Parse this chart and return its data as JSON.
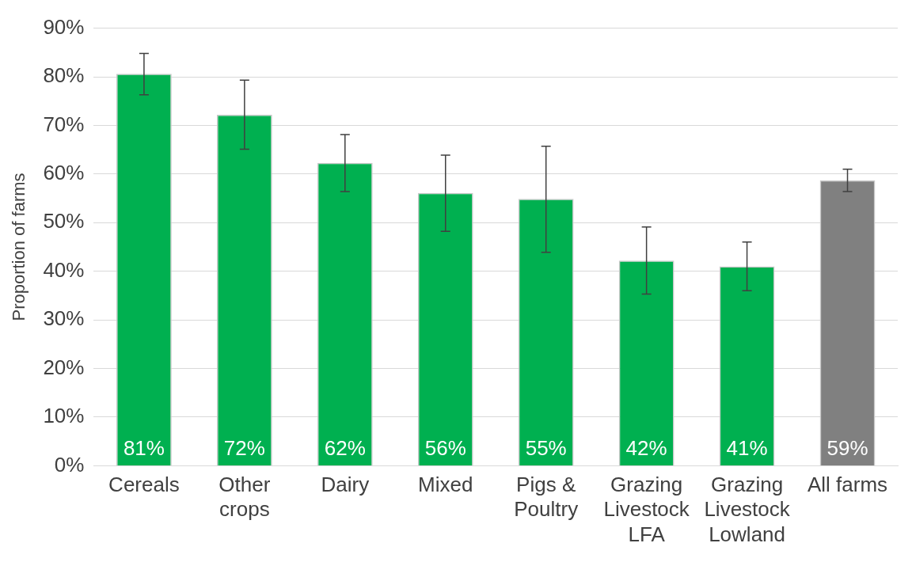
{
  "chart_data": {
    "type": "bar",
    "ylabel": "Proportion of farms",
    "categories": [
      "Cereals",
      "Other crops",
      "Dairy",
      "Mixed",
      "Pigs & Poultry",
      "Grazing Livestock LFA",
      "Grazing Livestock Lowland",
      "All farms"
    ],
    "values": [
      80.6,
      72.2,
      62.3,
      56.1,
      54.9,
      42.2,
      41.0,
      58.7
    ],
    "colors": [
      "#00b050",
      "#00b050",
      "#00b050",
      "#00b050",
      "#00b050",
      "#00b050",
      "#00b050",
      "#808080"
    ],
    "errors": [
      [
        76.3,
        84.8
      ],
      [
        65.1,
        79.3
      ],
      [
        56.4,
        68.1
      ],
      [
        48.2,
        63.9
      ],
      [
        43.9,
        65.7
      ],
      [
        35.3,
        49.1
      ],
      [
        36.0,
        46.0
      ],
      [
        56.4,
        61.0
      ]
    ],
    "value_labels": [
      "81%",
      "72%",
      "62%",
      "56%",
      "55%",
      "42%",
      "41%",
      "59%"
    ],
    "ylim": [
      0,
      90
    ],
    "yticks": [
      {
        "value": 0,
        "label": "0%"
      },
      {
        "value": 10,
        "label": "10%"
      },
      {
        "value": 20,
        "label": "20%"
      },
      {
        "value": 30,
        "label": "30%"
      },
      {
        "value": 40,
        "label": "40%"
      },
      {
        "value": 50,
        "label": "50%"
      },
      {
        "value": 60,
        "label": "60%"
      },
      {
        "value": 70,
        "label": "70%"
      },
      {
        "value": 80,
        "label": "80%"
      },
      {
        "value": 90,
        "label": "90%"
      }
    ],
    "grid": "y",
    "legend": false
  }
}
